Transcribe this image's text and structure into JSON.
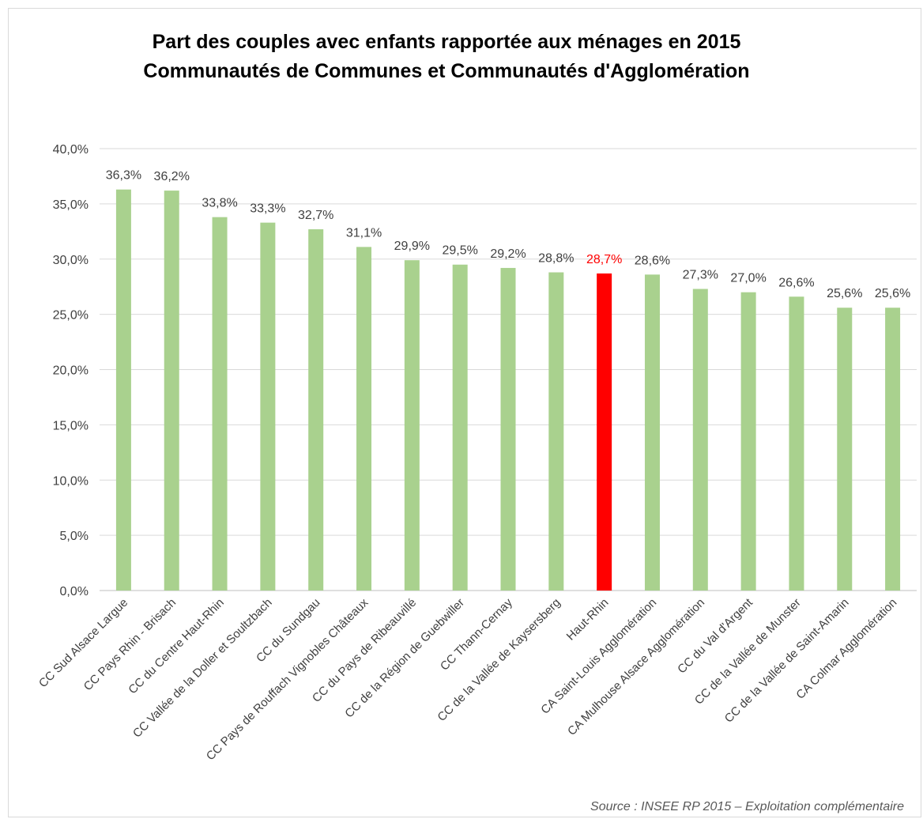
{
  "chart_data": {
    "type": "bar",
    "title_line1": "Part des couples avec enfants rapportée aux ménages en 2015",
    "title_line2": "Communautés de Communes et Communautés d'Agglomération",
    "source": "Source : INSEE RP 2015 – Exploitation complémentaire",
    "ylim": [
      0,
      40
    ],
    "yticks": [
      "0,0%",
      "5,0%",
      "10,0%",
      "15,0%",
      "20,0%",
      "25,0%",
      "30,0%",
      "35,0%",
      "40,0%"
    ],
    "categories": [
      "CC Sud Alsace Largue",
      "CC Pays Rhin - Brisach",
      "CC du Centre Haut-Rhin",
      "CC Vallée de la Doller et Soultzbach",
      "CC du Sundgau",
      "CC Pays de Rouffach Vignobles Châteaux",
      "CC du Pays de Ribeauvillé",
      "CC de la Région de Guebwiller",
      "CC Thann-Cernay",
      "CC de la Vallée de Kaysersberg",
      "Haut-Rhin",
      "CA Saint-Louis Agglomération",
      "CA Mulhouse Alsace Agglomération",
      "CC du Val d'Argent",
      "CC de la Vallée de Munster",
      "CC de la Vallée de Saint-Amarin",
      "CA Colmar Agglomération"
    ],
    "values": [
      36.3,
      36.2,
      33.8,
      33.3,
      32.7,
      31.1,
      29.9,
      29.5,
      29.2,
      28.8,
      28.7,
      28.6,
      27.3,
      27.0,
      26.6,
      25.6,
      25.6
    ],
    "value_labels": [
      "36,3%",
      "36,2%",
      "33,8%",
      "33,3%",
      "32,7%",
      "31,1%",
      "29,9%",
      "29,5%",
      "29,2%",
      "28,8%",
      "28,7%",
      "28,6%",
      "27,3%",
      "27,0%",
      "26,6%",
      "25,6%",
      "25,6%"
    ],
    "highlight_index": 10,
    "colors": {
      "bar": "#a9d18e",
      "highlight": "#ff0000",
      "grid": "#d9d9d9",
      "text": "#404040"
    },
    "grid": true,
    "legend": "none"
  }
}
